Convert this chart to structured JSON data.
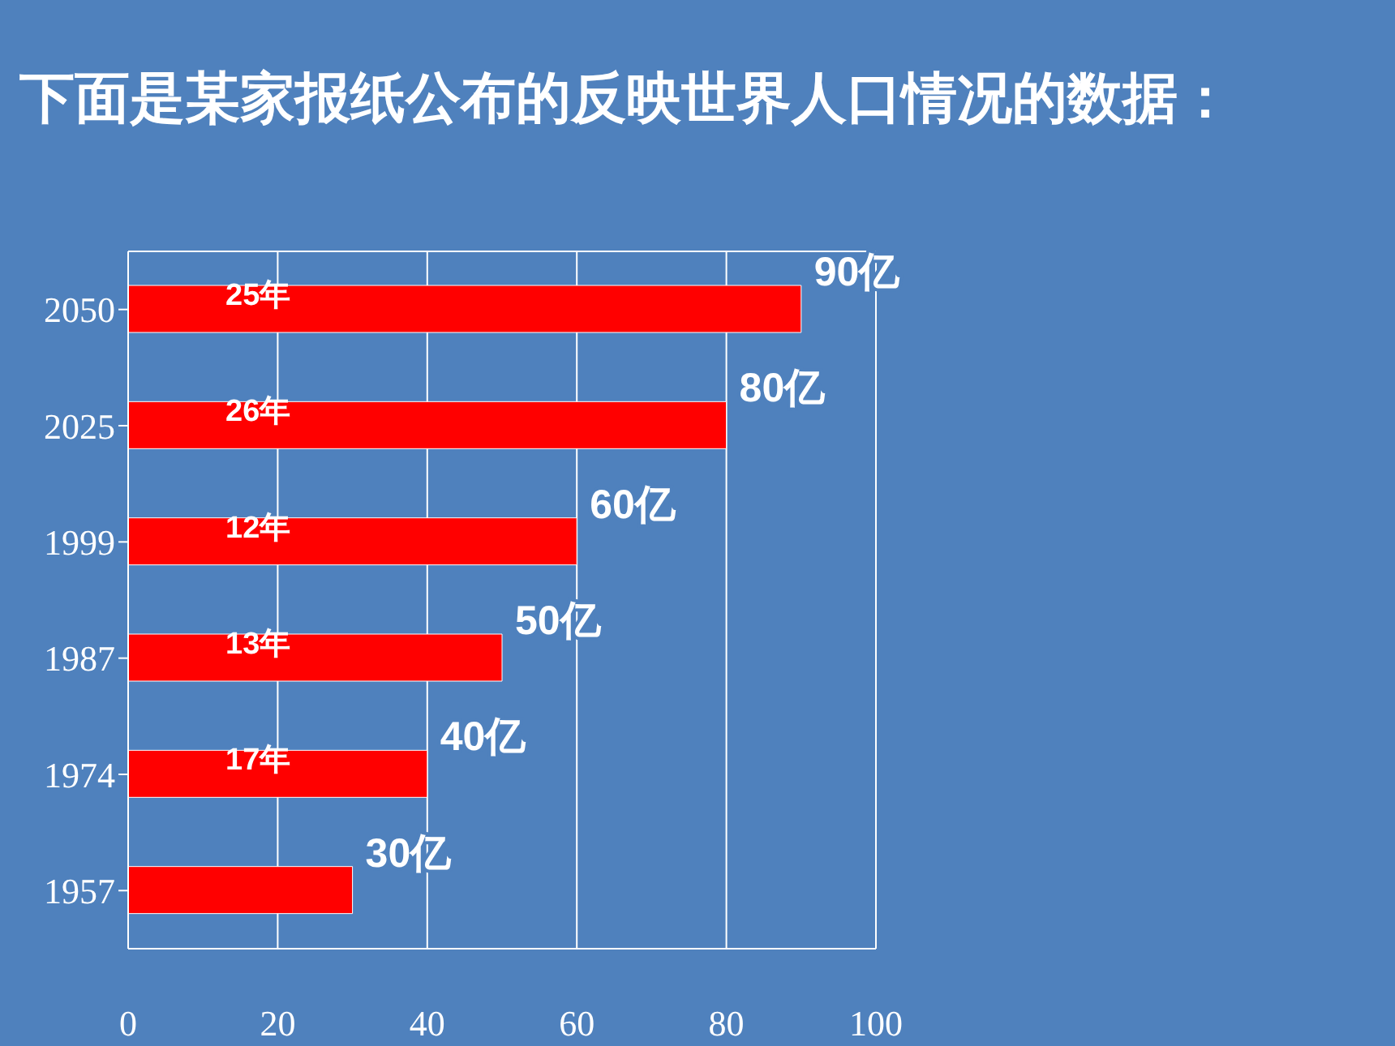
{
  "chart_data": {
    "type": "bar",
    "orientation": "horizontal",
    "title": "下面是某家报纸公布的反映世界人口情况的数据：",
    "categories": [
      "2050",
      "2025",
      "1999",
      "1987",
      "1974",
      "1957"
    ],
    "values": [
      90,
      80,
      60,
      50,
      40,
      30
    ],
    "color": "#ff0000",
    "value_labels": [
      "90亿",
      "80亿",
      "60亿",
      "50亿",
      "40亿",
      "30亿"
    ],
    "xlim": [
      0,
      100
    ],
    "xticks": [
      0,
      20,
      40,
      60,
      80,
      100
    ],
    "grid": "x",
    "annotations": [
      "25年",
      "26年",
      "12年",
      "13年",
      "17年"
    ]
  }
}
